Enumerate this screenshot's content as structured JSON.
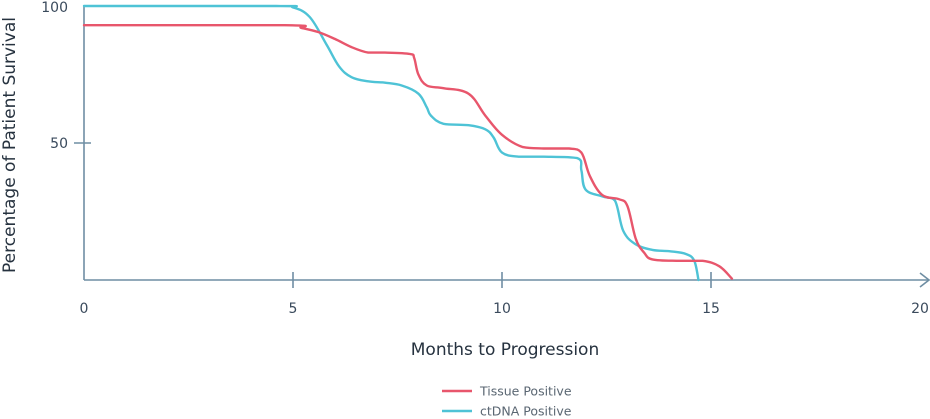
{
  "chart_data": {
    "type": "line",
    "title": "",
    "xlabel": "Months to Progression",
    "ylabel": "Percentage of Patient Survival",
    "xlim": [
      0,
      20
    ],
    "ylim": [
      0,
      100
    ],
    "xticks": [
      0,
      5,
      10,
      15,
      20
    ],
    "xtick_labels": [
      "0",
      "5",
      "10",
      "15",
      "20"
    ],
    "yticks": [
      50,
      100
    ],
    "ytick_labels": [
      "50",
      "100"
    ],
    "grid": false,
    "legend": "bottom-center",
    "series": [
      {
        "name": "Tissue Positive",
        "color": "#e8566c",
        "x": [
          0,
          4.8,
          5.2,
          5.6,
          6.0,
          6.4,
          6.8,
          7.2,
          7.8,
          7.9,
          8.0,
          8.2,
          8.6,
          9.2,
          9.6,
          10.0,
          10.5,
          11.0,
          11.6,
          11.9,
          12.1,
          12.4,
          12.8,
          13.0,
          13.2,
          13.4,
          13.6,
          14.2,
          14.8,
          15.2,
          15.5
        ],
        "y": [
          93,
          93,
          92,
          90.5,
          88,
          85,
          83,
          83,
          82.5,
          81,
          75,
          71,
          70,
          68,
          60,
          53,
          48.5,
          48,
          48,
          46.5,
          38,
          31,
          29.5,
          27,
          15,
          10,
          7.5,
          7,
          7,
          5,
          0.5
        ]
      },
      {
        "name": "ctDNA Positive",
        "color": "#4ec3d6",
        "x": [
          0,
          4.6,
          5.0,
          5.4,
          5.8,
          6.1,
          6.4,
          6.8,
          7.2,
          7.6,
          8.0,
          8.2,
          8.3,
          8.6,
          9.2,
          9.6,
          9.8,
          10.0,
          10.4,
          11.0,
          11.8,
          11.9,
          12.0,
          12.4,
          12.7,
          12.9,
          13.2,
          13.6,
          14.0,
          14.4,
          14.6,
          14.7
        ],
        "y": [
          100,
          100,
          99.5,
          96,
          86,
          78,
          74,
          72.5,
          72,
          71,
          68,
          63,
          60,
          57,
          56.5,
          55,
          52,
          46.5,
          45,
          45,
          44.5,
          40,
          33,
          30.5,
          29,
          18,
          13,
          11,
          10.5,
          9.5,
          7,
          0
        ]
      }
    ]
  }
}
